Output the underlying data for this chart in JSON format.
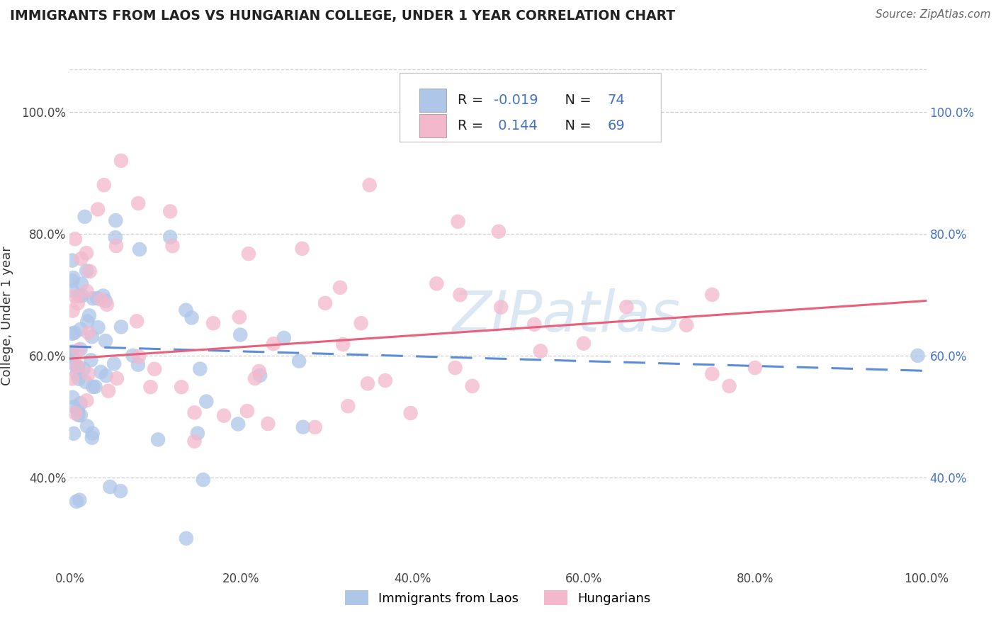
{
  "title": "IMMIGRANTS FROM LAOS VS HUNGARIAN COLLEGE, UNDER 1 YEAR CORRELATION CHART",
  "source": "Source: ZipAtlas.com",
  "ylabel": "College, Under 1 year",
  "xlim": [
    0.0,
    1.0
  ],
  "ylim": [
    0.25,
    1.08
  ],
  "x_tick_values": [
    0.0,
    0.2,
    0.4,
    0.6,
    0.8,
    1.0
  ],
  "x_tick_labels": [
    "0.0%",
    "20.0%",
    "40.0%",
    "60.0%",
    "80.0%",
    "100.0%"
  ],
  "y_tick_values": [
    0.4,
    0.6,
    0.8,
    1.0
  ],
  "y_tick_labels": [
    "40.0%",
    "60.0%",
    "80.0%",
    "100.0%"
  ],
  "blue_R": -0.019,
  "blue_N": 74,
  "pink_R": 0.144,
  "pink_N": 69,
  "blue_color": "#aec6e8",
  "pink_color": "#f4b8cc",
  "blue_line_color": "#5b8dd9",
  "pink_line_color": "#e8607a",
  "watermark_color": "#c5d8ee",
  "right_axis_color": "#4472c4",
  "legend_label_blue": "Immigrants from Laos",
  "legend_label_pink": "Hungarians",
  "blue_line_start_y": 0.615,
  "blue_line_end_y": 0.575,
  "pink_line_start_y": 0.595,
  "pink_line_end_y": 0.69
}
